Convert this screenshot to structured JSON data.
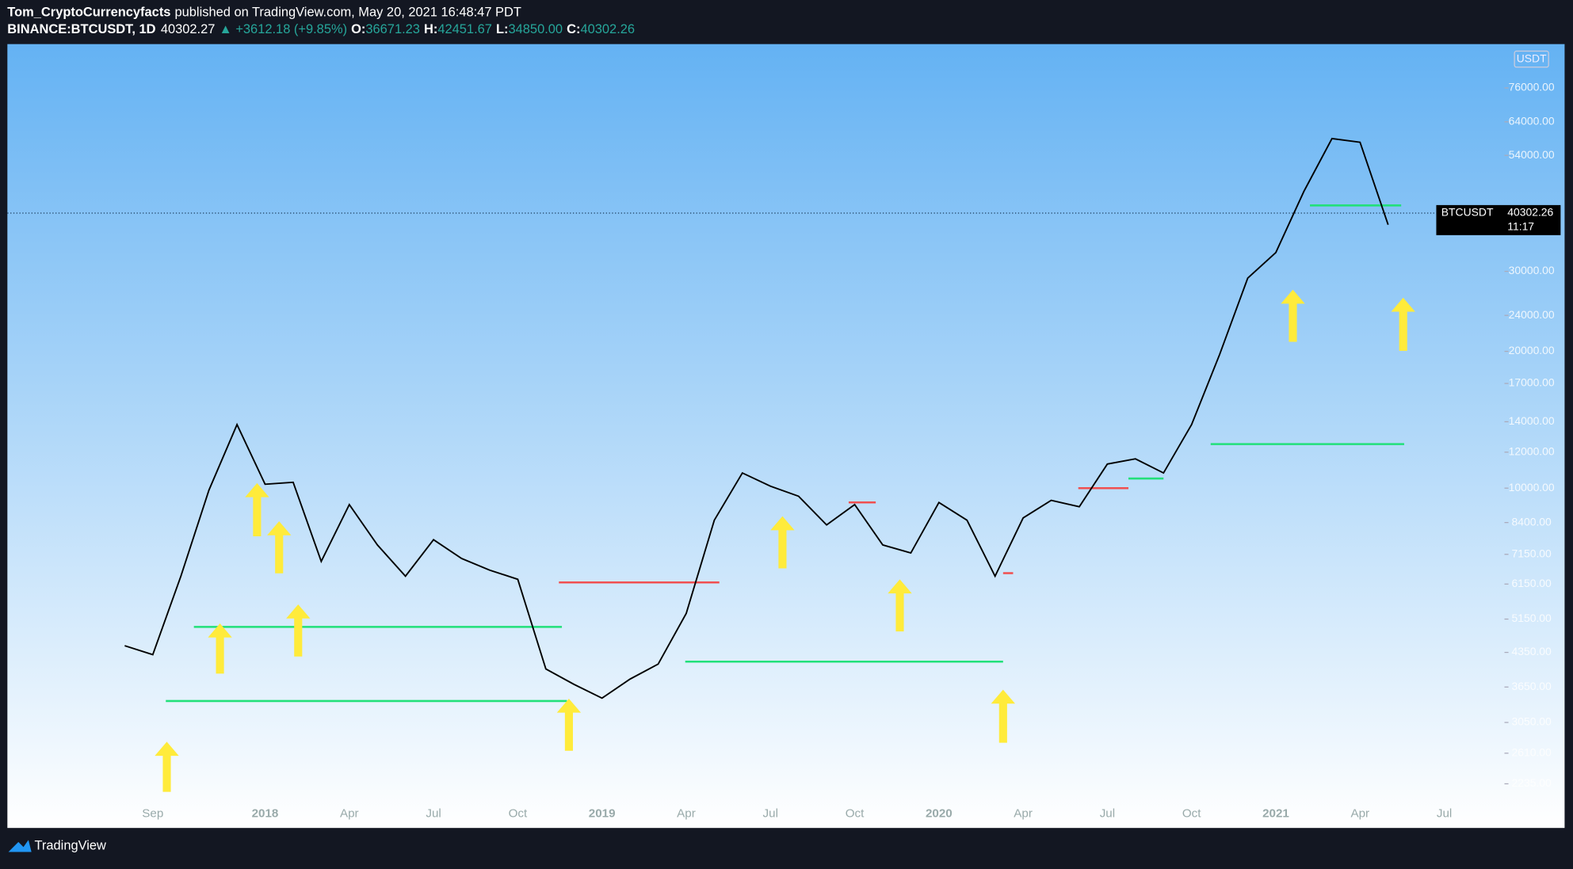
{
  "header": {
    "author": "Tom_CryptoCurrencyfacts",
    "published": "published on TradingView.com, May 20, 2021 16:48:47 PDT",
    "symbol": "BINANCE:BTCUSDT, 1D",
    "last": "40302.27",
    "change": "▲ +3612.18 (+9.85%)",
    "o_label": "O:",
    "open": "36671.23",
    "h_label": "H:",
    "high": "42451.67",
    "l_label": "L:",
    "low": "34850.00",
    "c_label": "C:",
    "close": "40302.26"
  },
  "chart_data": {
    "type": "line",
    "color": "#000000",
    "log_scale": true,
    "categories": [
      null,
      "Sep",
      null,
      null,
      null,
      "2018",
      null,
      null,
      "Apr",
      null,
      null,
      "Jul",
      null,
      null,
      "Oct",
      null,
      null,
      "2019",
      null,
      null,
      "Apr",
      null,
      null,
      "Jul",
      null,
      null,
      "Oct",
      null,
      null,
      "2020",
      null,
      null,
      "Apr",
      null,
      null,
      "Jul",
      null,
      null,
      "Oct",
      null,
      null,
      "2021",
      null,
      null,
      "Apr",
      null,
      null,
      "Jul"
    ],
    "values": [
      4500,
      4300,
      6400,
      9900,
      13800,
      10200,
      10300,
      6900,
      9200,
      7500,
      6400,
      7700,
      7000,
      6600,
      6300,
      4000,
      3700,
      3450,
      3800,
      4100,
      5300,
      8500,
      10800,
      10100,
      9600,
      8300,
      9200,
      7500,
      7200,
      9300,
      8500,
      6400,
      8600,
      9400,
      9100,
      11300,
      11600,
      10800,
      13800,
      19700,
      29000,
      33000,
      45000,
      58800,
      57700,
      38000,
      null,
      null
    ],
    "ylim": [
      1787,
      94900
    ],
    "yticks": [
      {
        "value": 2235,
        "label": "2235.00"
      },
      {
        "value": 2610,
        "label": "2610.00"
      },
      {
        "value": 3050,
        "label": "3050.00"
      },
      {
        "value": 3650,
        "label": "3650.00"
      },
      {
        "value": 4350,
        "label": "4350.00"
      },
      {
        "value": 5150,
        "label": "5150.00"
      },
      {
        "value": 6150,
        "label": "6150.00"
      },
      {
        "value": 7150,
        "label": "7150.00"
      },
      {
        "value": 8400,
        "label": "8400.00"
      },
      {
        "value": 10000,
        "label": "10000.00"
      },
      {
        "value": 12000,
        "label": "12000.00"
      },
      {
        "value": 14000,
        "label": "14000.00"
      },
      {
        "value": 17000,
        "label": "17000.00"
      },
      {
        "value": 20000,
        "label": "20000.00"
      },
      {
        "value": 24000,
        "label": "24000.00"
      },
      {
        "value": 30000,
        "label": "30000.00"
      },
      {
        "value": 54000,
        "label": "54000.00"
      },
      {
        "value": 64000,
        "label": "64000.00"
      },
      {
        "value": 76000,
        "label": "76000.00"
      }
    ],
    "levels": [
      {
        "value": 3400,
        "color": "#22e07a"
      },
      {
        "value": 4950,
        "color": "#22e07a"
      },
      {
        "value": 6200,
        "color": "#f05050"
      },
      {
        "value": 4150,
        "color": "#22e07a"
      },
      {
        "value": 9300,
        "color": "#f05050"
      },
      {
        "value": 6500,
        "color": "#f05050"
      },
      {
        "value": 10000,
        "color": "#f05050"
      },
      {
        "value": 10500,
        "color": "#22e07a"
      },
      {
        "value": 12500,
        "color": "#22e07a"
      },
      {
        "value": 41900,
        "color": "#22e07a"
      }
    ],
    "currency": "USDT",
    "price_symbol": "BTCUSDT",
    "last_price": 40302.26,
    "countdown": "11:17"
  },
  "footer": {
    "brand": "TradingView"
  }
}
